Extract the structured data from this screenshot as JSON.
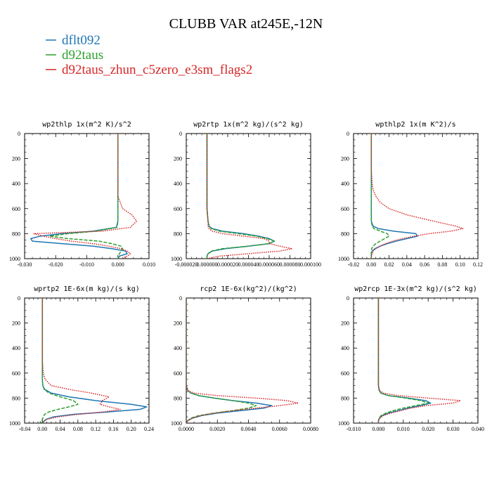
{
  "figure": {
    "title": "CLUBB VAR at245E,-12N",
    "legend": [
      {
        "label": "dflt092",
        "color": "#1f77b4",
        "dash": "solid"
      },
      {
        "label": "d92taus",
        "color": "#2ca02c",
        "dash": "dashed"
      },
      {
        "label": "d92taus_zhun_c5zero_e3sm_flags2",
        "color": "#d62728",
        "dash": "dotted"
      }
    ]
  },
  "chart_data": [
    {
      "type": "line",
      "title": "wp2thlp  1x(m^2 K)/s^2",
      "xlim": [
        -0.03,
        0.01
      ],
      "ylim": [
        1000,
        0
      ],
      "xticks": [
        -0.03,
        -0.02,
        -0.01,
        0.0,
        0.01
      ],
      "xtick_labels": [
        "-0.030",
        "-0.020",
        "-0.010",
        "0.000",
        "0.010"
      ],
      "yticks": [
        0,
        200,
        400,
        600,
        800,
        1000
      ],
      "ytick_labels": [
        "0",
        "200",
        "400",
        "600",
        "800",
        "1000"
      ],
      "y": [
        0,
        100,
        200,
        300,
        400,
        500,
        600,
        650,
        700,
        750,
        780,
        800,
        820,
        840,
        860,
        880,
        900,
        920,
        940,
        960,
        980,
        1000
      ],
      "series": [
        {
          "name": "dflt092",
          "values": [
            0,
            0,
            0,
            0,
            0,
            0,
            0,
            0,
            0,
            -0.0005,
            -0.008,
            -0.018,
            -0.025,
            -0.028,
            -0.0275,
            -0.018,
            -0.008,
            -0.002,
            0.0025,
            0.003,
            0.0005,
            0
          ]
        },
        {
          "name": "d92taus",
          "values": [
            0,
            0,
            0,
            0,
            0,
            0,
            0,
            0,
            0,
            -0.0003,
            -0.007,
            -0.016,
            -0.022,
            -0.016,
            -0.006,
            -0.002,
            0.001,
            0.0015,
            0.001,
            0.0005,
            0.0002,
            0
          ]
        },
        {
          "name": "d92taus_zhun_c5zero_e3sm_flags2",
          "values": [
            0,
            0,
            0,
            0,
            0,
            0,
            0.0015,
            0.0045,
            0.006,
            0.004,
            -0.005,
            -0.027,
            -0.024,
            -0.02,
            -0.015,
            -0.008,
            -0.003,
            0.001,
            0.003,
            0.004,
            0.003,
            0.001
          ]
        }
      ]
    },
    {
      "type": "line",
      "title": "wp2rtp  1x(m^2 kg)/(s^2 kg)",
      "xlim": [
        -2e-05,
        0.0001
      ],
      "ylim": [
        1000,
        0
      ],
      "xticks": [
        -2e-05,
        0.0,
        2e-05,
        4e-05,
        6e-05,
        8e-05,
        0.0001
      ],
      "xtick_labels": [
        "-0.000020",
        "0.000000",
        "0.000020",
        "0.000040",
        "0.000060",
        "0.000080",
        "0.000100"
      ],
      "yticks": [
        0,
        200,
        400,
        600,
        800,
        1000
      ],
      "ytick_labels": [
        "0",
        "200",
        "400",
        "600",
        "800",
        "1000"
      ],
      "y": [
        0,
        100,
        200,
        300,
        400,
        500,
        600,
        650,
        700,
        740,
        760,
        780,
        800,
        820,
        840,
        860,
        880,
        900,
        920,
        940,
        960,
        980,
        1000
      ],
      "series": [
        {
          "name": "dflt092",
          "values": [
            0,
            0,
            0,
            0,
            0,
            0,
            0,
            5e-07,
            1e-06,
            2e-06,
            5e-06,
            1.5e-05,
            3.5e-05,
            5e-05,
            6e-05,
            6.5e-05,
            6e-05,
            4e-05,
            1.8e-05,
            5e-06,
            1e-06,
            0,
            0
          ]
        },
        {
          "name": "d92taus",
          "values": [
            0,
            0,
            0,
            0,
            0,
            0,
            0,
            5e-07,
            1e-06,
            2e-06,
            4e-06,
            1.2e-05,
            3e-05,
            4.8e-05,
            5.8e-05,
            6.5e-05,
            6e-05,
            4e-05,
            1.5e-05,
            4e-06,
            1e-06,
            0,
            0
          ]
        },
        {
          "name": "d92taus_zhun_c5zero_e3sm_flags2",
          "values": [
            0,
            0,
            0,
            0,
            0,
            0,
            0,
            5e-07,
            1e-06,
            1e-06,
            2e-06,
            5e-06,
            1.5e-05,
            3.5e-05,
            5.5e-05,
            6e-05,
            6e-05,
            7e-05,
            8.2e-05,
            7e-05,
            4e-05,
            1.2e-05,
            0
          ]
        }
      ]
    },
    {
      "type": "line",
      "title": "wpthlp2  1x(m K^2)/s",
      "xlim": [
        -0.02,
        0.12
      ],
      "ylim": [
        1000,
        0
      ],
      "xticks": [
        -0.02,
        0.0,
        0.02,
        0.04,
        0.06,
        0.08,
        0.1,
        0.12
      ],
      "xtick_labels": [
        "-0.02",
        "0.00",
        "0.02",
        "0.04",
        "0.06",
        "0.08",
        "0.10",
        "0.12"
      ],
      "yticks": [
        0,
        200,
        400,
        600,
        800,
        1000
      ],
      "ytick_labels": [
        "0",
        "200",
        "400",
        "600",
        "800",
        "1000"
      ],
      "y": [
        0,
        100,
        200,
        300,
        400,
        450,
        500,
        550,
        600,
        650,
        700,
        740,
        760,
        780,
        800,
        820,
        840,
        860,
        880,
        900,
        920,
        940,
        960,
        980,
        1000
      ],
      "series": [
        {
          "name": "dflt092",
          "values": [
            0,
            0,
            0,
            0,
            0,
            0,
            0,
            0,
            0,
            0,
            0,
            0.002,
            0.008,
            0.025,
            0.05,
            0.052,
            0.04,
            0.028,
            0.018,
            0.01,
            0.004,
            0.001,
            0,
            0,
            0
          ]
        },
        {
          "name": "d92taus",
          "values": [
            0,
            0,
            0,
            0,
            0,
            0,
            0,
            0,
            0,
            0,
            0,
            0.001,
            0.003,
            0.01,
            0.018,
            0.02,
            0.015,
            0.01,
            0.005,
            0.002,
            0.0005,
            0,
            0,
            0,
            0
          ]
        },
        {
          "name": "d92taus_zhun_c5zero_e3sm_flags2",
          "values": [
            0,
            0,
            0,
            0,
            0.001,
            0.002,
            0.005,
            0.01,
            0.02,
            0.04,
            0.07,
            0.095,
            0.103,
            0.09,
            0.065,
            0.048,
            0.035,
            0.024,
            0.016,
            0.01,
            0.005,
            0.002,
            0.001,
            0,
            0
          ]
        }
      ]
    },
    {
      "type": "line",
      "title": "wprtp2  1E-6x(m kg)/(s kg)",
      "xlim": [
        -0.04,
        0.24
      ],
      "ylim": [
        1000,
        0
      ],
      "xticks": [
        -0.04,
        0.0,
        0.04,
        0.08,
        0.12,
        0.16,
        0.2,
        0.24
      ],
      "xtick_labels": [
        "-0.04",
        "0.00",
        "0.04",
        "0.08",
        "0.12",
        "0.16",
        "0.20",
        "0.24"
      ],
      "yticks": [
        0,
        200,
        400,
        600,
        800,
        1000
      ],
      "ytick_labels": [
        "0",
        "200",
        "400",
        "600",
        "800",
        "1000"
      ],
      "y": [
        0,
        100,
        200,
        300,
        400,
        500,
        600,
        650,
        700,
        730,
        760,
        790,
        820,
        850,
        870,
        890,
        910,
        930,
        950,
        970,
        990,
        1000
      ],
      "series": [
        {
          "name": "dflt092",
          "values": [
            0,
            0,
            0,
            0,
            0,
            0,
            0,
            0,
            0.001,
            0.005,
            0.02,
            0.06,
            0.12,
            0.2,
            0.235,
            0.22,
            0.15,
            0.07,
            0.025,
            0.008,
            0.002,
            0
          ]
        },
        {
          "name": "d92taus",
          "values": [
            0,
            0,
            0,
            0,
            0,
            0,
            0,
            0,
            0.001,
            0.004,
            0.015,
            0.04,
            0.07,
            0.08,
            0.06,
            0.035,
            0.015,
            0.005,
            0.002,
            0,
            -0.005,
            0
          ]
        },
        {
          "name": "d92taus_zhun_c5zero_e3sm_flags2",
          "values": [
            0,
            0,
            0,
            0,
            0,
            0,
            0.002,
            0.006,
            0.02,
            0.06,
            0.11,
            0.15,
            0.135,
            0.13,
            0.15,
            0.175,
            0.14,
            0.08,
            0.035,
            0.01,
            0.002,
            0
          ]
        }
      ]
    },
    {
      "type": "line",
      "title": "rcp2  1E-6x(kg^2)/(kg^2)",
      "xlim": [
        0.0,
        0.008
      ],
      "ylim": [
        1000,
        0
      ],
      "xticks": [
        0.0,
        0.002,
        0.004,
        0.006,
        0.008
      ],
      "xtick_labels": [
        "0.0000",
        "0.0020",
        "0.0040",
        "0.0060",
        "0.0080"
      ],
      "yticks": [
        0,
        200,
        400,
        600,
        800,
        1000
      ],
      "ytick_labels": [
        "0",
        "200",
        "400",
        "600",
        "800",
        "1000"
      ],
      "y": [
        0,
        100,
        200,
        300,
        400,
        500,
        600,
        650,
        700,
        740,
        760,
        780,
        800,
        820,
        840,
        860,
        880,
        900,
        920,
        940,
        960,
        980,
        1000
      ],
      "series": [
        {
          "name": "dflt092",
          "values": [
            0,
            0,
            0,
            0,
            0,
            0,
            0,
            0,
            0,
            0.0001,
            0.0003,
            0.0008,
            0.0018,
            0.003,
            0.0045,
            0.0055,
            0.005,
            0.0035,
            0.002,
            0.001,
            0.0004,
            0.0001,
            0
          ]
        },
        {
          "name": "d92taus",
          "values": [
            0,
            0,
            0,
            0,
            0,
            0,
            0,
            0,
            0,
            0.0001,
            0.0003,
            0.0008,
            0.0018,
            0.003,
            0.004,
            0.0045,
            0.004,
            0.003,
            0.0018,
            0.0008,
            0.0003,
            0.0001,
            0
          ]
        },
        {
          "name": "d92taus_zhun_c5zero_e3sm_flags2",
          "values": [
            0,
            0,
            0,
            0,
            0,
            0,
            0,
            0,
            0,
            0.0001,
            0.0005,
            0.002,
            0.0045,
            0.0065,
            0.0072,
            0.006,
            0.0045,
            0.003,
            0.0018,
            0.0009,
            0.0004,
            0.0001,
            0
          ]
        }
      ]
    },
    {
      "type": "line",
      "title": "wp2rcp  1E-3x(m^2 kg)/(s^2 kg)",
      "xlim": [
        -0.01,
        0.04
      ],
      "ylim": [
        1000,
        0
      ],
      "xticks": [
        -0.01,
        0.0,
        0.01,
        0.02,
        0.03,
        0.04
      ],
      "xtick_labels": [
        "-0.010",
        "0.000",
        "0.010",
        "0.020",
        "0.030",
        "0.040"
      ],
      "yticks": [
        0,
        200,
        400,
        600,
        800,
        1000
      ],
      "ytick_labels": [
        "0",
        "200",
        "400",
        "600",
        "800",
        "1000"
      ],
      "y": [
        0,
        100,
        200,
        300,
        400,
        500,
        600,
        650,
        700,
        740,
        760,
        780,
        800,
        820,
        840,
        860,
        880,
        900,
        920,
        940,
        960,
        980,
        1000
      ],
      "series": [
        {
          "name": "dflt092",
          "values": [
            0,
            0,
            0,
            0,
            0,
            0,
            0,
            0,
            0,
            0.0003,
            0.001,
            0.004,
            0.012,
            0.019,
            0.021,
            0.017,
            0.012,
            0.008,
            0.004,
            0.0015,
            0.0004,
            0,
            0
          ]
        },
        {
          "name": "d92taus",
          "values": [
            0,
            0,
            0,
            0,
            0,
            0,
            0,
            0,
            0,
            0.0003,
            0.001,
            0.004,
            0.011,
            0.017,
            0.02,
            0.015,
            0.01,
            0.006,
            0.003,
            0.001,
            0.0003,
            0,
            0
          ]
        },
        {
          "name": "d92taus_zhun_c5zero_e3sm_flags2",
          "values": [
            0,
            0,
            0,
            0,
            0,
            0,
            0,
            0,
            0,
            0.0005,
            0.002,
            0.008,
            0.02,
            0.033,
            0.03,
            0.019,
            0.013,
            0.009,
            0.005,
            0.002,
            0.0006,
            0,
            0
          ]
        }
      ]
    }
  ]
}
